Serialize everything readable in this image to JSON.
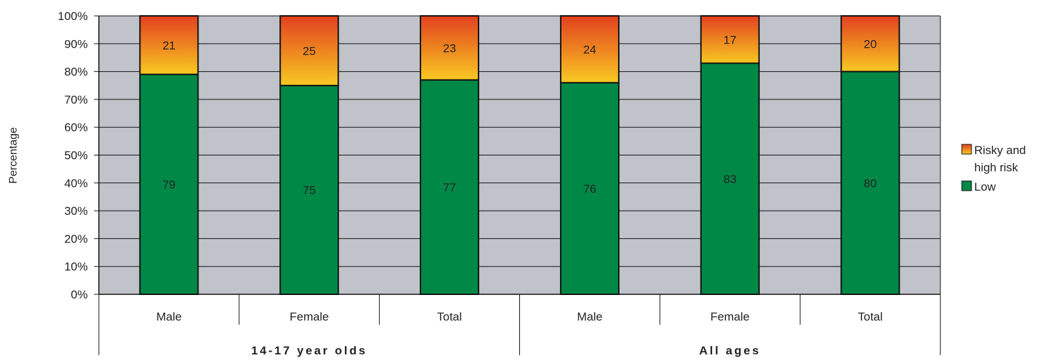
{
  "chart_data": {
    "type": "bar",
    "stacked": true,
    "ylabel": "Percentage",
    "ylim": [
      0,
      100
    ],
    "yticks": [
      "0%",
      "10%",
      "20%",
      "30%",
      "40%",
      "50%",
      "60%",
      "70%",
      "80%",
      "90%",
      "100%"
    ],
    "grid": true,
    "legend_position": "right",
    "categories": [
      "Male",
      "Female",
      "Total",
      "Male",
      "Female",
      "Total"
    ],
    "groups": [
      {
        "label": "14-17 year olds",
        "categories": [
          "Male",
          "Female",
          "Total"
        ]
      },
      {
        "label": "All ages",
        "categories": [
          "Male",
          "Female",
          "Total"
        ]
      }
    ],
    "series": [
      {
        "name": "Low",
        "values": [
          79,
          75,
          77,
          76,
          83,
          80
        ],
        "color": "#008847"
      },
      {
        "name": "Risky and high risk",
        "values": [
          21,
          25,
          23,
          24,
          17,
          20
        ],
        "gradient": [
          "#F9C922",
          "#E2401F"
        ]
      }
    ],
    "legend": [
      {
        "lines": [
          "Risky and",
          "high risk"
        ],
        "series": 1
      },
      {
        "lines": [
          "Low"
        ],
        "series": 0
      }
    ],
    "colors": {
      "plot_background": "#C0C4CA",
      "bar_outline": "#111111"
    }
  }
}
